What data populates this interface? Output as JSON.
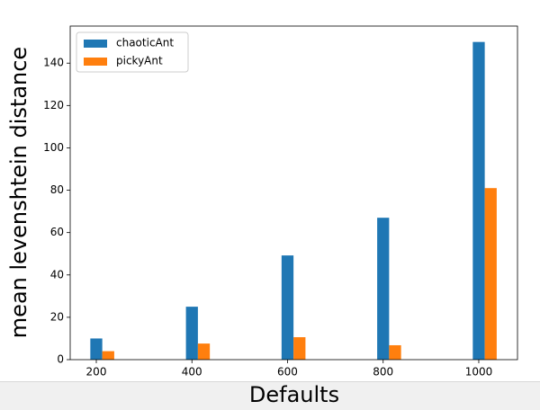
{
  "chart_data": {
    "type": "bar",
    "x_label": "Defaults",
    "y_label": "mean levenshtein distance",
    "x": [
      200,
      400,
      600,
      800,
      1000
    ],
    "bar_width": 25,
    "series": [
      {
        "name": "chaoticAnt",
        "color": "#1f77b4",
        "values": [
          10,
          25,
          49.2,
          67,
          150
        ]
      },
      {
        "name": "pickyAnt",
        "color": "#ff7f0e",
        "values": [
          4,
          7.6,
          10.6,
          6.8,
          81
        ]
      }
    ],
    "xlim": [
      145.4,
      1081
    ],
    "ylim": [
      0,
      157.5
    ],
    "xticks": [
      200,
      400,
      600,
      800,
      1000
    ],
    "yticks": [
      0,
      20,
      40,
      60,
      80,
      100,
      120,
      140
    ],
    "grid": false,
    "legend": "upper-left"
  }
}
